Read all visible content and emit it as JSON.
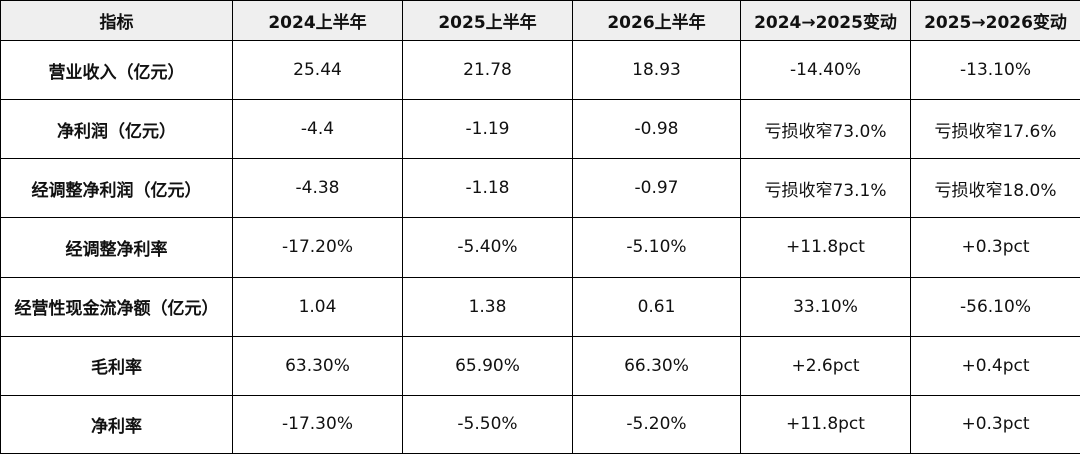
{
  "table": {
    "headers": [
      "指标",
      "2024上半年",
      "2025上半年",
      "2026上半年",
      "2024→2025变动",
      "2025→2026变动"
    ],
    "rows": [
      [
        "营业收入（亿元）",
        "25.44",
        "21.78",
        "18.93",
        "-14.40%",
        "-13.10%"
      ],
      [
        "净利润（亿元）",
        "-4.4",
        "-1.19",
        "-0.98",
        "亏损收窄73.0%",
        "亏损收窄17.6%"
      ],
      [
        "经调整净利润（亿元）",
        "-4.38",
        "-1.18",
        "-0.97",
        "亏损收窄73.1%",
        "亏损收窄18.0%"
      ],
      [
        "经调整净利率",
        "-17.20%",
        "-5.40%",
        "-5.10%",
        "+11.8pct",
        "+0.3pct"
      ],
      [
        "经营性现金流净额（亿元）",
        "1.04",
        "1.38",
        "0.61",
        "33.10%",
        "-56.10%"
      ],
      [
        "毛利率",
        "63.30%",
        "65.90%",
        "66.30%",
        "+2.6pct",
        "+0.4pct"
      ],
      [
        "净利率",
        "-17.30%",
        "-5.50%",
        "-5.20%",
        "+11.8pct",
        "+0.3pct"
      ]
    ]
  }
}
